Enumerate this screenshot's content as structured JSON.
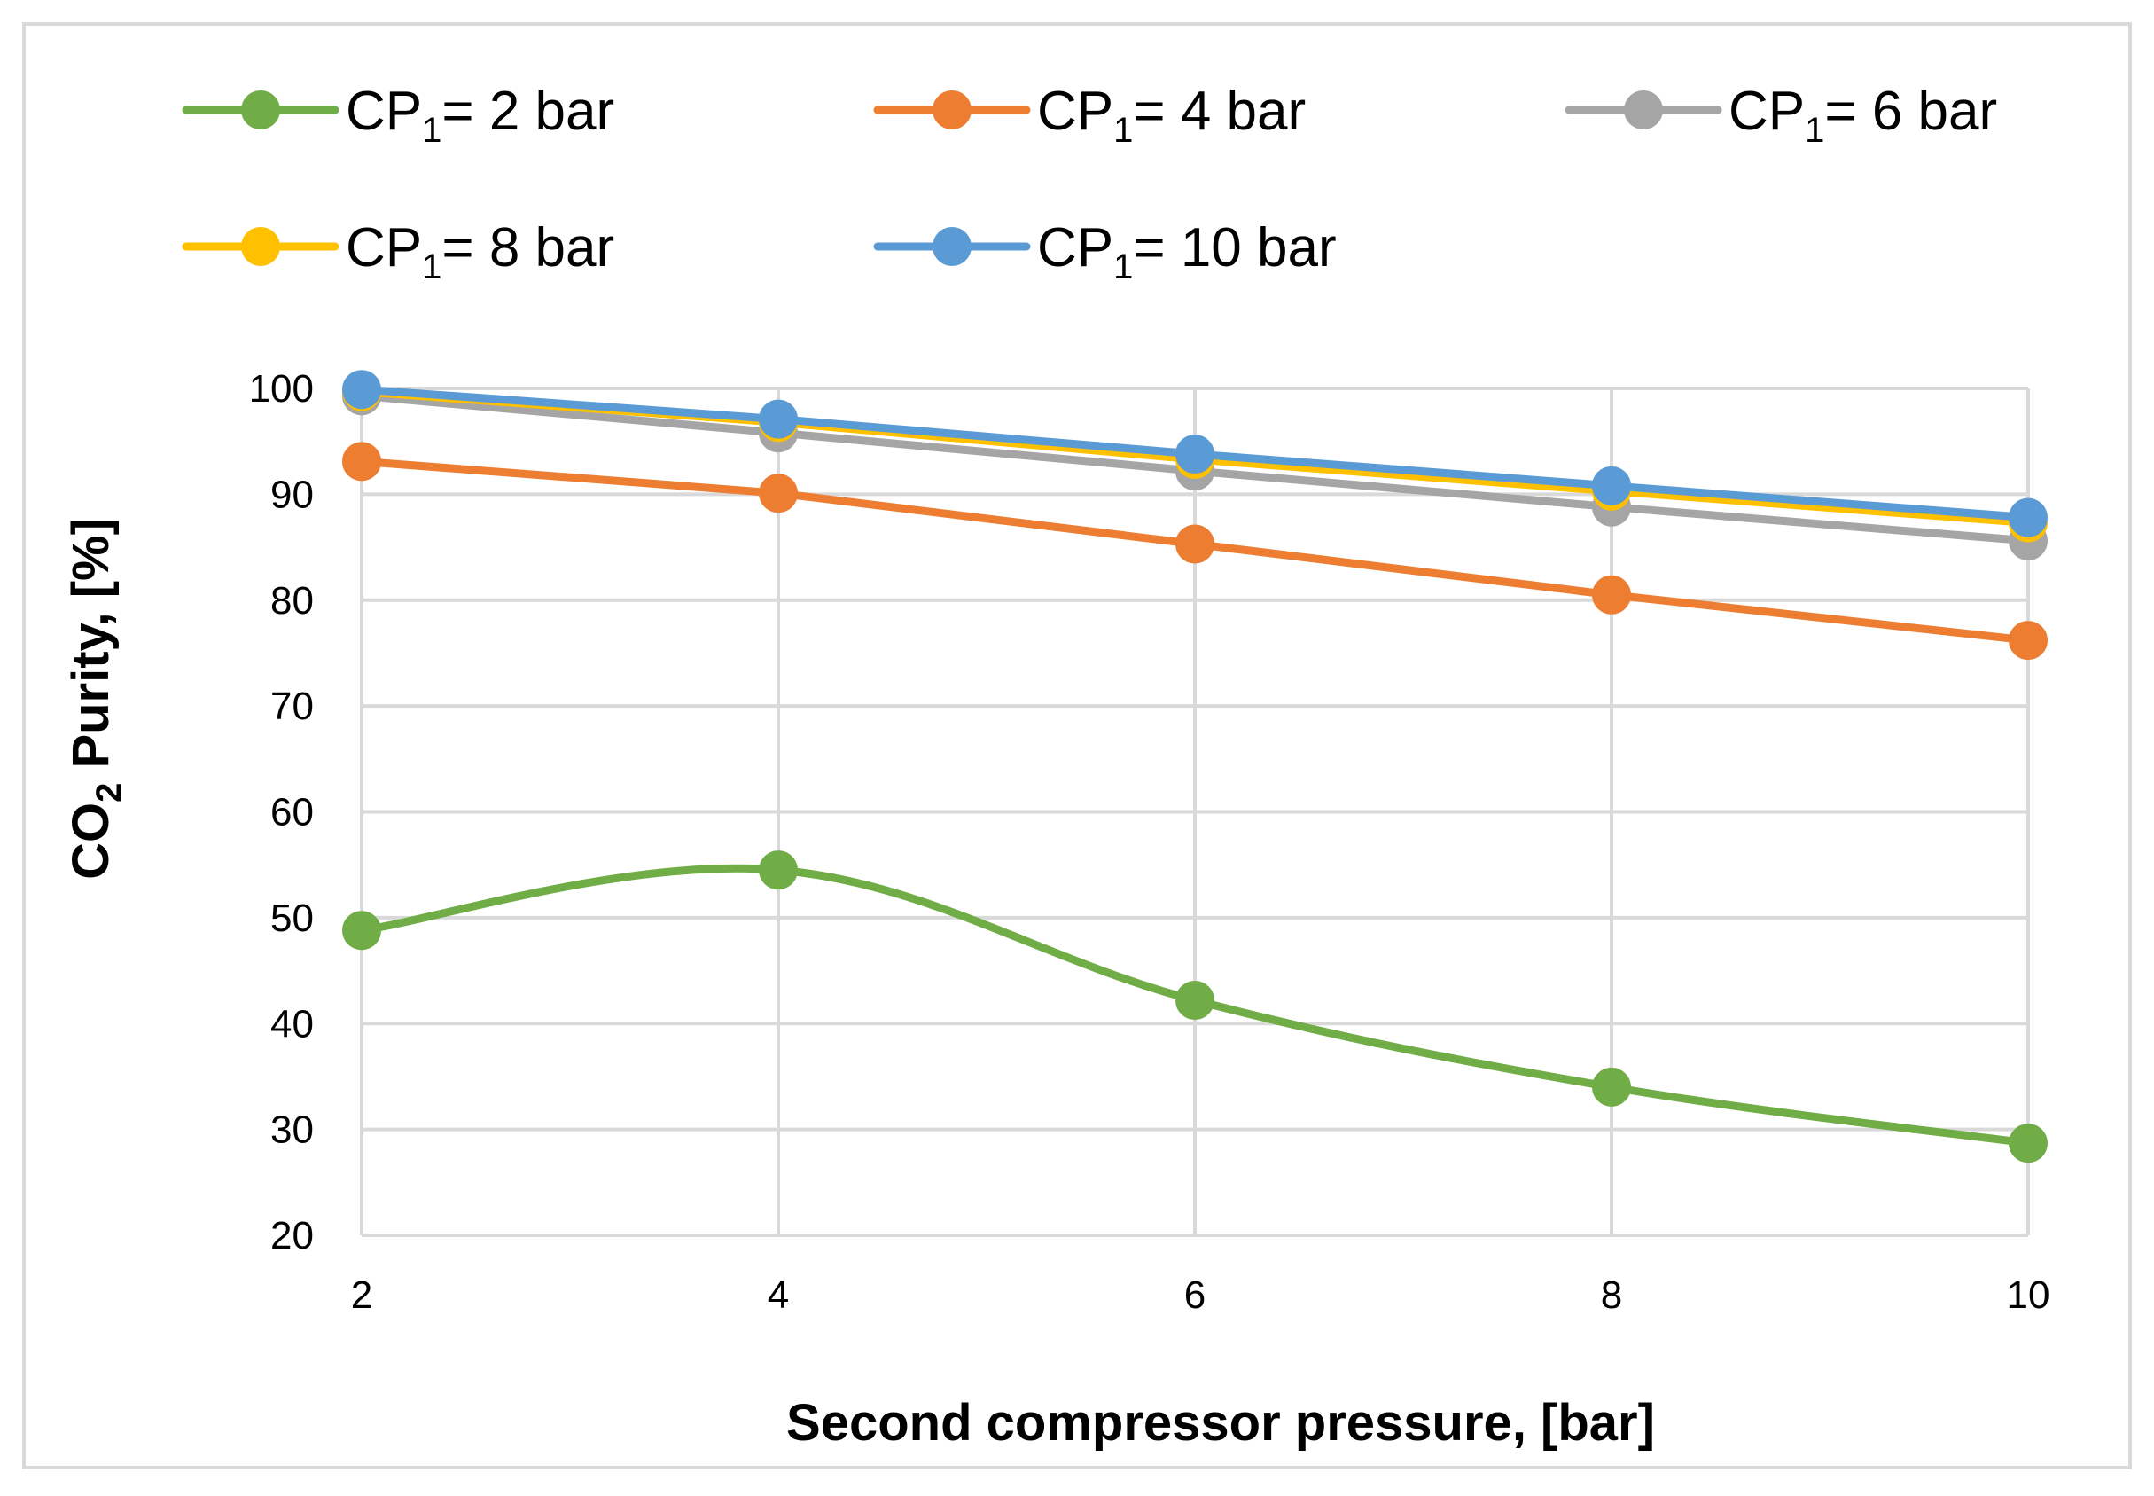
{
  "chart_data": {
    "type": "line",
    "title": "",
    "xlabel": "Second compressor pressure, [bar]",
    "ylabel": {
      "prefix": "CO",
      "subscript": "2",
      "suffix": " Purity, [%]"
    },
    "x": [
      2,
      4,
      6,
      8,
      10
    ],
    "x_tick_labels": [
      "2",
      "4",
      "6",
      "8",
      "10"
    ],
    "y_tick_labels": [
      "20",
      "30",
      "40",
      "50",
      "60",
      "70",
      "80",
      "90",
      "100"
    ],
    "xlim": [
      2,
      10
    ],
    "ylim": [
      20,
      100
    ],
    "grid": true,
    "legend_position": "top",
    "series": [
      {
        "name": "CP1= 2 bar",
        "label_prefix": "CP",
        "label_subscript": "1",
        "label_suffix": "= 2 bar",
        "color": "#70AD47",
        "smooth": true,
        "values": [
          48.8,
          54.5,
          42.2,
          34.0,
          28.7
        ]
      },
      {
        "name": "CP1= 4 bar",
        "label_prefix": "CP",
        "label_subscript": "1",
        "label_suffix": "= 4 bar",
        "color": "#ED7D31",
        "smooth": false,
        "values": [
          93.1,
          90.1,
          85.3,
          80.5,
          76.2
        ]
      },
      {
        "name": "CP1= 6 bar",
        "label_prefix": "CP",
        "label_subscript": "1",
        "label_suffix": "= 6 bar",
        "color": "#A5A5A5",
        "smooth": false,
        "values": [
          99.3,
          95.8,
          92.2,
          88.8,
          85.6
        ]
      },
      {
        "name": "CP1= 8 bar",
        "label_prefix": "CP",
        "label_subscript": "1",
        "label_suffix": "= 8 bar",
        "color": "#FFC000",
        "smooth": false,
        "values": [
          99.7,
          96.8,
          93.3,
          90.3,
          87.3
        ]
      },
      {
        "name": "CP1= 10 bar",
        "label_prefix": "CP",
        "label_subscript": "1",
        "label_suffix": "= 10 bar",
        "color": "#5B9BD5",
        "smooth": false,
        "values": [
          99.9,
          97.1,
          93.8,
          90.8,
          87.8
        ]
      }
    ],
    "colors": {
      "grid": "#D9D9D9",
      "frame": "#D9D9D9",
      "text": "#000000"
    }
  }
}
